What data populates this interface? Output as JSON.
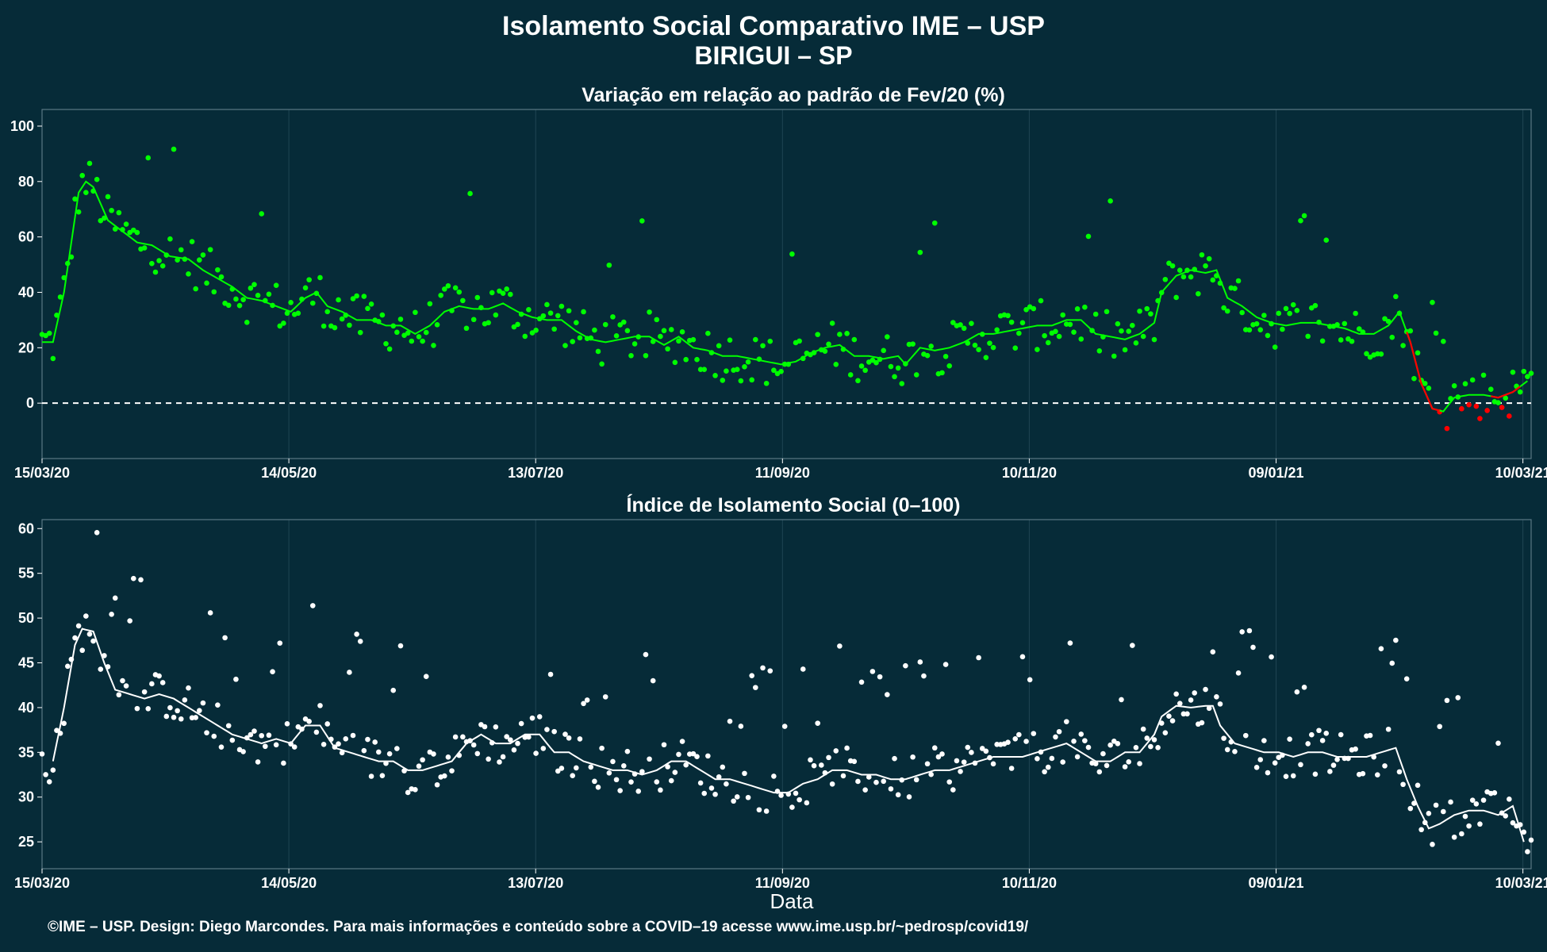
{
  "title": "Isolamento Social Comparativo IME – USP",
  "subtitle": "BIRIGUI – SP",
  "caption": "©IME – USP. Design: Diego Marcondes. Para mais informações e conteúdo sobre a COVID–19 acesse www.ime.usp.br/~pedrosp/covid19/",
  "colors": {
    "background": "#062b38",
    "positive": "#00ff00",
    "negative": "#ff0000",
    "index": "#ffffff",
    "grid": "#1f4553"
  },
  "chart_data": [
    {
      "type": "scatter",
      "title": "Variação em relação ao padrão de Fev/20 (%)",
      "xlabel": "",
      "ylabel": "",
      "x_range": [
        "2020-03-15",
        "2021-03-12"
      ],
      "x_ticks": [
        "15/03/20",
        "14/05/20",
        "13/07/20",
        "11/09/20",
        "10/11/20",
        "09/01/21",
        "10/03/21"
      ],
      "ylim": [
        -20,
        106
      ],
      "y_ticks": [
        0,
        20,
        40,
        60,
        80,
        100
      ],
      "reference_line": 0,
      "moving_average_knots": [
        [
          0,
          22
        ],
        [
          3,
          22
        ],
        [
          6,
          40
        ],
        [
          10,
          76
        ],
        [
          12,
          80
        ],
        [
          14,
          78
        ],
        [
          18,
          66
        ],
        [
          22,
          62
        ],
        [
          26,
          58
        ],
        [
          30,
          57
        ],
        [
          35,
          53
        ],
        [
          40,
          52
        ],
        [
          44,
          48
        ],
        [
          48,
          45
        ],
        [
          52,
          42
        ],
        [
          56,
          38
        ],
        [
          60,
          37
        ],
        [
          64,
          35
        ],
        [
          68,
          33
        ],
        [
          72,
          38
        ],
        [
          75,
          40
        ],
        [
          78,
          35
        ],
        [
          82,
          33
        ],
        [
          86,
          30
        ],
        [
          90,
          30
        ],
        [
          94,
          28
        ],
        [
          98,
          28
        ],
        [
          102,
          25
        ],
        [
          106,
          28
        ],
        [
          110,
          33
        ],
        [
          114,
          35
        ],
        [
          118,
          34
        ],
        [
          122,
          34
        ],
        [
          126,
          36
        ],
        [
          130,
          33
        ],
        [
          134,
          31
        ],
        [
          138,
          30
        ],
        [
          142,
          30
        ],
        [
          146,
          26
        ],
        [
          150,
          23
        ],
        [
          154,
          22
        ],
        [
          158,
          23
        ],
        [
          162,
          24
        ],
        [
          166,
          24
        ],
        [
          170,
          21
        ],
        [
          174,
          24
        ],
        [
          178,
          20
        ],
        [
          182,
          19
        ],
        [
          186,
          17
        ],
        [
          190,
          17
        ],
        [
          194,
          16
        ],
        [
          198,
          15
        ],
        [
          202,
          14
        ],
        [
          206,
          15
        ],
        [
          210,
          18
        ],
        [
          214,
          20
        ],
        [
          218,
          21
        ],
        [
          222,
          17
        ],
        [
          226,
          17
        ],
        [
          230,
          16
        ],
        [
          234,
          17
        ],
        [
          236,
          14
        ],
        [
          240,
          20
        ],
        [
          244,
          19
        ],
        [
          248,
          20
        ],
        [
          252,
          22
        ],
        [
          256,
          25
        ],
        [
          260,
          25
        ],
        [
          264,
          26
        ],
        [
          268,
          27
        ],
        [
          272,
          28
        ],
        [
          276,
          28
        ],
        [
          280,
          30
        ],
        [
          284,
          30
        ],
        [
          288,
          25
        ],
        [
          292,
          24
        ],
        [
          296,
          23
        ],
        [
          300,
          25
        ],
        [
          304,
          29
        ],
        [
          306,
          40
        ],
        [
          310,
          46
        ],
        [
          314,
          48
        ],
        [
          318,
          47
        ],
        [
          321,
          48
        ],
        [
          324,
          38
        ],
        [
          328,
          35
        ],
        [
          332,
          31
        ],
        [
          336,
          29
        ],
        [
          340,
          28
        ],
        [
          344,
          29
        ],
        [
          348,
          29
        ],
        [
          352,
          28
        ],
        [
          356,
          27
        ],
        [
          360,
          25
        ],
        [
          364,
          25
        ],
        [
          368,
          28
        ],
        [
          371,
          33
        ],
        [
          374,
          22
        ],
        [
          377,
          7
        ],
        [
          380,
          -2
        ],
        [
          383,
          -3
        ],
        [
          386,
          2
        ],
        [
          390,
          3
        ],
        [
          394,
          3
        ],
        [
          398,
          2
        ],
        [
          402,
          4
        ],
        [
          406,
          8
        ]
      ],
      "negative_segments": [
        [
          373,
          382
        ],
        [
          396,
          404
        ]
      ],
      "points_note": "daily values scattered around the moving average; peaks near 92 (late March) and 100 (mid April); negatives to -14 in mid February 2021"
    },
    {
      "type": "scatter",
      "title": "Índice de Isolamento Social (0–100)",
      "xlabel": "Data",
      "ylabel": "",
      "x_range": [
        "2020-03-15",
        "2021-03-12"
      ],
      "x_ticks": [
        "15/03/20",
        "14/05/20",
        "13/07/20",
        "11/09/20",
        "10/11/20",
        "09/01/21",
        "10/03/21"
      ],
      "ylim": [
        22,
        61
      ],
      "y_ticks": [
        25,
        30,
        35,
        40,
        45,
        50,
        55,
        60
      ],
      "moving_average_knots": [
        [
          3,
          34
        ],
        [
          6,
          40
        ],
        [
          9,
          47
        ],
        [
          11,
          48.8
        ],
        [
          14,
          48.5
        ],
        [
          17,
          45
        ],
        [
          20,
          42
        ],
        [
          24,
          41.5
        ],
        [
          28,
          41
        ],
        [
          32,
          41.5
        ],
        [
          36,
          41
        ],
        [
          40,
          40
        ],
        [
          44,
          39
        ],
        [
          48,
          38
        ],
        [
          52,
          37
        ],
        [
          56,
          36.5
        ],
        [
          60,
          36
        ],
        [
          64,
          36.5
        ],
        [
          68,
          36
        ],
        [
          72,
          38
        ],
        [
          76,
          38
        ],
        [
          80,
          35.5
        ],
        [
          84,
          35
        ],
        [
          88,
          34.5
        ],
        [
          92,
          34
        ],
        [
          96,
          34
        ],
        [
          100,
          33
        ],
        [
          104,
          33
        ],
        [
          108,
          33.5
        ],
        [
          112,
          34
        ],
        [
          116,
          36
        ],
        [
          120,
          37
        ],
        [
          124,
          36
        ],
        [
          128,
          36
        ],
        [
          132,
          37
        ],
        [
          136,
          37
        ],
        [
          140,
          35
        ],
        [
          144,
          35
        ],
        [
          148,
          34
        ],
        [
          152,
          33.5
        ],
        [
          156,
          33
        ],
        [
          160,
          33
        ],
        [
          164,
          32.5
        ],
        [
          168,
          33
        ],
        [
          172,
          34
        ],
        [
          176,
          34
        ],
        [
          180,
          33
        ],
        [
          184,
          32
        ],
        [
          188,
          32
        ],
        [
          192,
          31.5
        ],
        [
          196,
          31
        ],
        [
          200,
          30.5
        ],
        [
          204,
          30.5
        ],
        [
          208,
          31.5
        ],
        [
          212,
          32
        ],
        [
          216,
          33
        ],
        [
          220,
          33
        ],
        [
          224,
          32.5
        ],
        [
          228,
          32.5
        ],
        [
          232,
          32
        ],
        [
          236,
          32
        ],
        [
          240,
          32.5
        ],
        [
          244,
          33
        ],
        [
          248,
          33
        ],
        [
          252,
          33.5
        ],
        [
          256,
          34
        ],
        [
          260,
          34.5
        ],
        [
          264,
          34.5
        ],
        [
          268,
          34.5
        ],
        [
          272,
          35
        ],
        [
          276,
          35.5
        ],
        [
          280,
          36
        ],
        [
          284,
          35
        ],
        [
          288,
          34
        ],
        [
          292,
          34
        ],
        [
          296,
          35
        ],
        [
          300,
          35
        ],
        [
          304,
          37
        ],
        [
          306,
          39
        ],
        [
          310,
          40.2
        ],
        [
          314,
          40
        ],
        [
          318,
          40.2
        ],
        [
          320,
          40.2
        ],
        [
          322,
          38
        ],
        [
          326,
          36
        ],
        [
          330,
          35.5
        ],
        [
          334,
          35
        ],
        [
          338,
          35
        ],
        [
          342,
          34.5
        ],
        [
          346,
          35
        ],
        [
          350,
          35
        ],
        [
          354,
          34.5
        ],
        [
          358,
          34.5
        ],
        [
          362,
          34.5
        ],
        [
          366,
          35
        ],
        [
          370,
          35.5
        ],
        [
          373,
          32
        ],
        [
          376,
          29
        ],
        [
          379,
          26.5
        ],
        [
          382,
          27
        ],
        [
          386,
          28
        ],
        [
          390,
          28.5
        ],
        [
          394,
          28.5
        ],
        [
          398,
          28
        ],
        [
          402,
          29
        ],
        [
          405,
          25
        ]
      ],
      "points_note": "daily values; maxima near 59 (early April 2020) and 49.5 (January 2021); minima near 23 (February 2021)"
    }
  ]
}
